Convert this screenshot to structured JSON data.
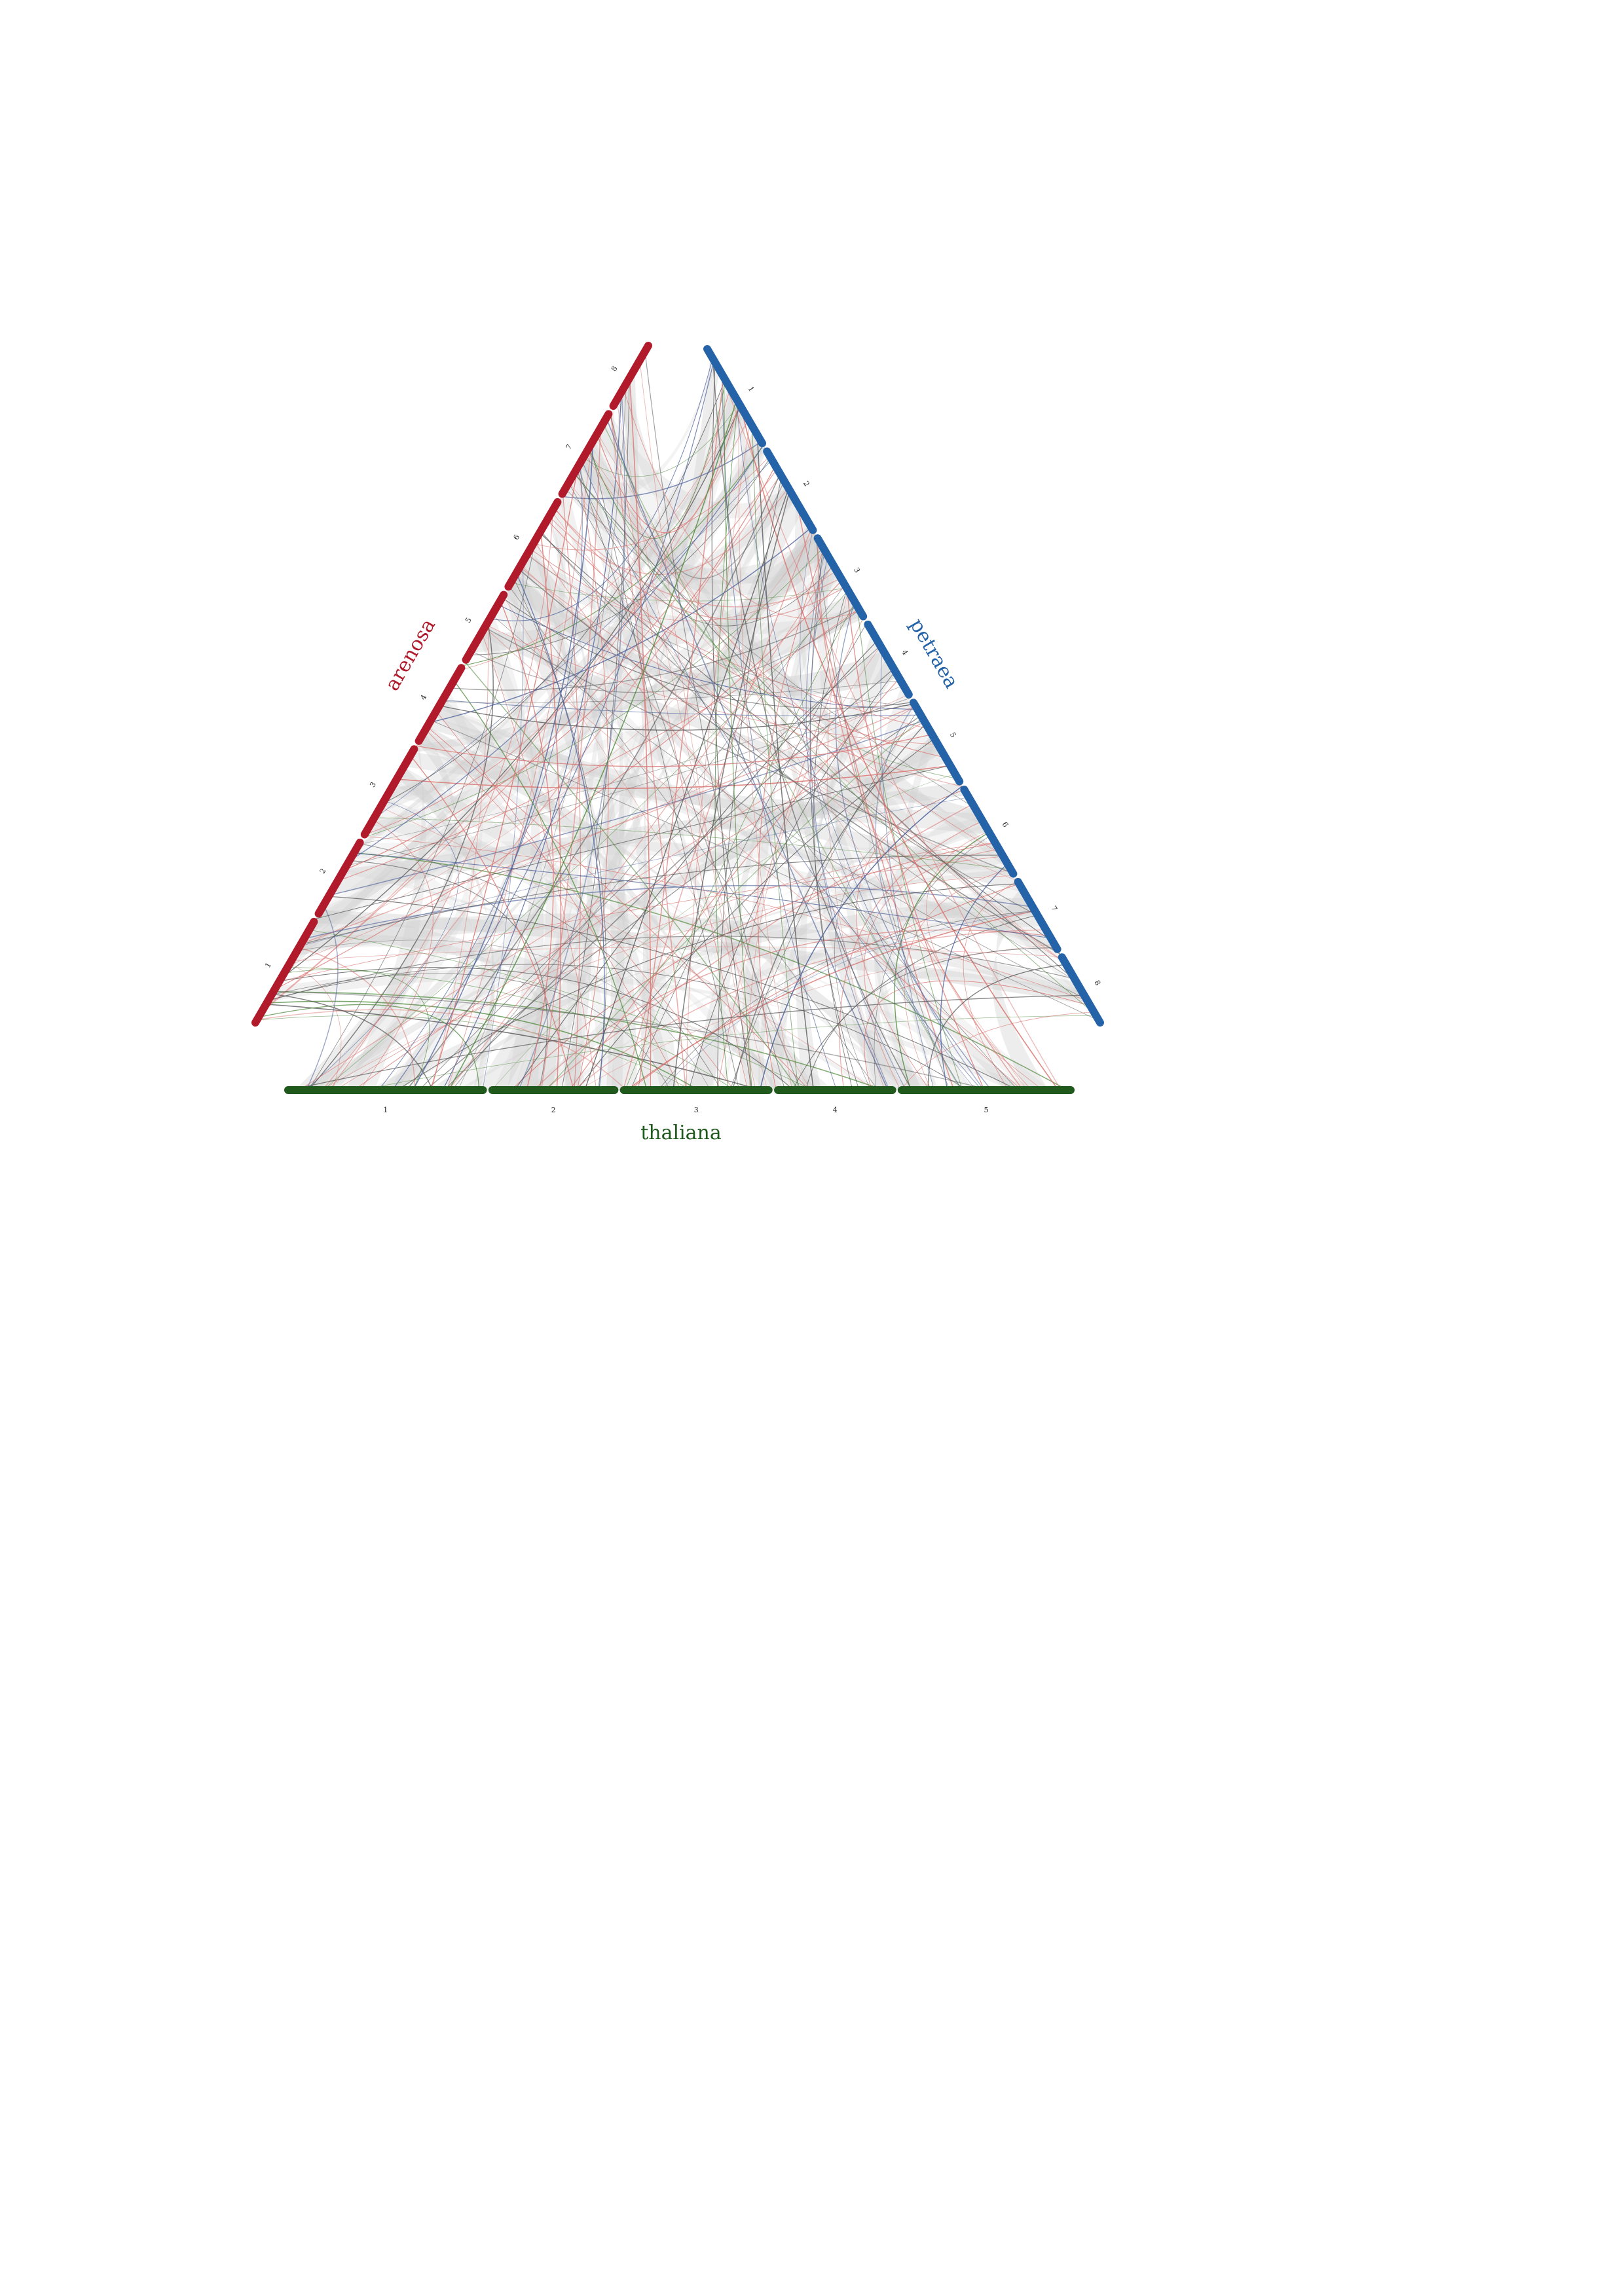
{
  "genomes": [
    {
      "id": "arenosa",
      "label": "arenosa",
      "color": "#b11a2a",
      "chromosomes": [
        "1",
        "2",
        "3",
        "4",
        "5",
        "6",
        "7",
        "8"
      ]
    },
    {
      "id": "petraea",
      "label": "petraea",
      "color": "#2463a8",
      "chromosomes": [
        "1",
        "2",
        "3",
        "4",
        "5",
        "6",
        "7",
        "8"
      ]
    },
    {
      "id": "thaliana",
      "label": "thaliana",
      "color": "#1f5a1c",
      "chromosomes": [
        "1",
        "2",
        "3",
        "4",
        "5"
      ]
    }
  ],
  "colors": {
    "band": "#cfcfcf",
    "link_gray": "#555555",
    "link_red": "#d9736f",
    "link_blue": "#4a5f9a",
    "link_green": "#4f8a3c"
  }
}
